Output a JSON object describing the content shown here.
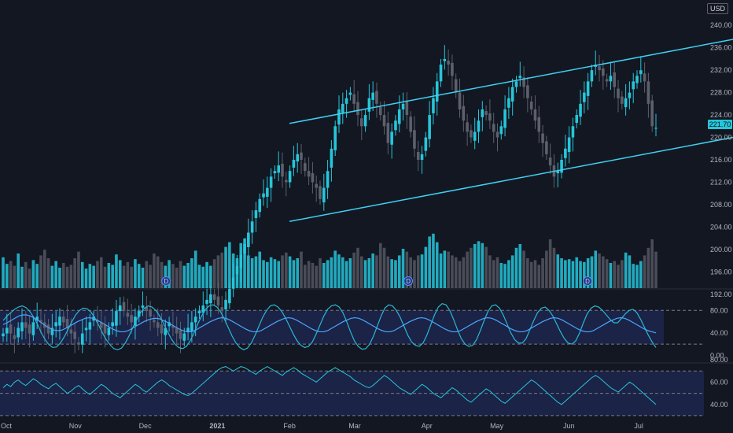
{
  "currency_button": "USD",
  "last_price_label": "221.70",
  "event_marker_label": "D",
  "colors": {
    "background": "#131722",
    "up": "#26c6da",
    "down": "#5d606b",
    "channel": "#3fd0f0",
    "stoch_k": "#2bb7d6",
    "stoch_d": "#4aa7ff",
    "rsi": "#26c6da",
    "band_fill": "#1f2a55"
  },
  "chart_data": [
    {
      "type": "candlestick",
      "title": "",
      "x_ticks": [
        "Oct",
        "Nov",
        "Dec",
        "2021",
        "Feb",
        "Mar",
        "Apr",
        "May",
        "Jun",
        "Jul"
      ],
      "y_ticks": [
        "192.00",
        "196.00",
        "200.00",
        "204.00",
        "208.00",
        "212.00",
        "216.00",
        "220.00",
        "224.00",
        "228.00",
        "232.00",
        "236.00",
        "240.00"
      ],
      "ylim": [
        190,
        242
      ],
      "last_price": 221.7,
      "close_series": {
        "start_date": "2020-10-01",
        "values": [
          185,
          186,
          185,
          184,
          186,
          187,
          186,
          185,
          187,
          188,
          187,
          186,
          185,
          186,
          187,
          188,
          187,
          186,
          185,
          184,
          183,
          185,
          186,
          187,
          188,
          187,
          186,
          185,
          186,
          187,
          189,
          190,
          189,
          188,
          187,
          188,
          189,
          190,
          189,
          188,
          187,
          186,
          185,
          186,
          187,
          186,
          185,
          184,
          185,
          186,
          187,
          188,
          189,
          190,
          191,
          192,
          191,
          190,
          189,
          191,
          193,
          195,
          197,
          199,
          201,
          203,
          205,
          207,
          209,
          210,
          211,
          213,
          214,
          215,
          213,
          212,
          214,
          216,
          217,
          216,
          214,
          213,
          212,
          211,
          209,
          211,
          214,
          218,
          222,
          225,
          226,
          227,
          228,
          226,
          224,
          222,
          224,
          227,
          228,
          226,
          224,
          222,
          219,
          221,
          223,
          225,
          226,
          224,
          221,
          218,
          216,
          217,
          220,
          224,
          227,
          230,
          233,
          234,
          233,
          231,
          228,
          225,
          223,
          221,
          220,
          221,
          223,
          225,
          224,
          223,
          221,
          220,
          222,
          225,
          227,
          229,
          230,
          231,
          229,
          227,
          225,
          223,
          221,
          219,
          217,
          215,
          213,
          214,
          216,
          218,
          220,
          222,
          224,
          226,
          228,
          230,
          232,
          233,
          232,
          231,
          230,
          231,
          229,
          227,
          226,
          227,
          228,
          230,
          231,
          232,
          230,
          226,
          222,
          221.7
        ]
      },
      "volume_series": [
        56,
        49,
        52,
        47,
        60,
        46,
        51,
        44,
        53,
        49,
        58,
        64,
        55,
        47,
        52,
        45,
        50,
        46,
        48,
        55,
        62,
        51,
        44,
        49,
        47,
        52,
        56,
        46,
        50,
        48,
        59,
        53,
        47,
        51,
        46,
        54,
        49,
        45,
        52,
        48,
        60,
        57,
        51,
        47,
        53,
        49,
        45,
        52,
        47,
        50,
        55,
        63,
        48,
        46,
        51,
        47,
        54,
        58,
        61,
        67,
        72,
        60,
        55,
        71,
        76,
        58,
        55,
        57,
        62,
        53,
        51,
        56,
        54,
        52,
        58,
        61,
        57,
        53,
        55,
        62,
        48,
        52,
        50,
        47,
        55,
        50,
        53,
        56,
        63,
        59,
        56,
        52,
        55,
        61,
        66,
        57,
        53,
        55,
        60,
        58,
        71,
        66,
        57,
        54,
        53,
        58,
        65,
        62,
        56,
        53,
        58,
        59,
        67,
        78,
        81,
        72,
        60,
        63,
        62,
        58,
        56,
        52,
        56,
        62,
        66,
        70,
        73,
        71,
        67,
        58,
        53,
        56,
        50,
        49,
        53,
        58,
        66,
        70,
        63,
        55,
        51,
        53,
        48,
        55,
        63,
        75,
        66,
        59,
        55,
        53,
        54,
        52,
        56,
        52,
        51,
        55,
        57,
        63,
        60,
        57,
        54,
        50,
        52,
        48,
        53,
        61,
        58,
        49,
        48,
        52,
        58,
        66,
        75,
        62
      ],
      "channel_upper": {
        "start": {
          "date": "2021-02-01",
          "value": 222.5
        },
        "end_value": 237.5
      },
      "channel_lower": {
        "start": {
          "date": "2021-02-01",
          "value": 205.0
        },
        "end_value": 220.0
      },
      "event_markers": [
        "2020-12-10",
        "2021-03-24",
        "2021-06-09"
      ]
    },
    {
      "type": "line",
      "title": "",
      "y_ticks": [
        "0.00",
        "40.00",
        "80.00"
      ],
      "ylim": [
        -5,
        100
      ],
      "levels": [
        20,
        80
      ],
      "series": [
        {
          "values": [
            62,
            70,
            76,
            82,
            86,
            88,
            85,
            78,
            68,
            55,
            40,
            28,
            19,
            14,
            15,
            22,
            33,
            46,
            60,
            72,
            80,
            84,
            83,
            77,
            67,
            54,
            40,
            28,
            19,
            12,
            10,
            13,
            22,
            35,
            50,
            64,
            76,
            84,
            88,
            86,
            80,
            70,
            57,
            43,
            30,
            20,
            14,
            12,
            16,
            26,
            40,
            56,
            70,
            82,
            88,
            90,
            86,
            77,
            64,
            49,
            34,
            22,
            14,
            10,
            13,
            22,
            36,
            52,
            68,
            80,
            88,
            90,
            86,
            78,
            66,
            52,
            38,
            26,
            18,
            14,
            16,
            24,
            38,
            54,
            70,
            82,
            88,
            90,
            86,
            76,
            60,
            42,
            26,
            16,
            11,
            12,
            20,
            34,
            52,
            70,
            84,
            90,
            88,
            80,
            68,
            52,
            36,
            24,
            18,
            16,
            22,
            36,
            54,
            72,
            86,
            92,
            90,
            80,
            64,
            46,
            30,
            20,
            16,
            18,
            28,
            44,
            62,
            78,
            88,
            90,
            84,
            72,
            56,
            40,
            28,
            22,
            22,
            30,
            46,
            62,
            76,
            84,
            86,
            80,
            70,
            56,
            42,
            30,
            22,
            20,
            26,
            40,
            58,
            74,
            84,
            88,
            86,
            80,
            72,
            64,
            58,
            58,
            66,
            74,
            80,
            82,
            76,
            64,
            50,
            36,
            24,
            14
          ]
        },
        {
          "values": [
            55,
            58,
            62,
            66,
            70,
            72,
            72,
            70,
            66,
            62,
            57,
            52,
            48,
            45,
            44,
            45,
            48,
            52,
            56,
            60,
            63,
            66,
            67,
            66,
            63,
            59,
            55,
            51,
            47,
            44,
            42,
            42,
            44,
            48,
            52,
            56,
            60,
            63,
            65,
            66,
            65,
            62,
            59,
            55,
            51,
            47,
            44,
            42,
            42,
            44,
            48,
            52,
            56,
            60,
            63,
            66,
            67,
            66,
            63,
            59,
            55,
            51,
            47,
            44,
            42,
            42,
            44,
            48,
            52,
            56,
            60,
            63,
            66,
            67,
            66,
            63,
            59,
            55,
            51,
            47,
            44,
            42,
            42,
            44,
            48,
            52,
            56,
            60,
            63,
            66,
            67,
            66,
            63,
            59,
            55,
            51,
            47,
            44,
            42,
            42,
            44,
            48,
            52,
            56,
            60,
            63,
            66,
            67,
            66,
            63,
            59,
            55,
            51,
            47,
            44,
            42,
            42,
            44,
            48,
            52,
            56,
            60,
            63,
            66,
            67,
            66,
            63,
            59,
            55,
            51,
            47,
            44,
            42,
            42,
            44,
            48,
            52,
            56,
            60,
            63,
            66,
            67,
            66,
            63,
            59,
            55,
            51,
            47,
            44,
            42,
            42,
            44,
            48,
            52,
            56,
            60,
            63,
            66,
            67,
            66,
            63,
            59,
            55,
            51,
            47,
            44,
            42,
            40
          ]
        }
      ]
    },
    {
      "type": "line",
      "title": "",
      "y_ticks": [
        "40.00",
        "60.00",
        "80.00"
      ],
      "ylim": [
        25,
        85
      ],
      "levels": [
        30,
        50,
        70
      ],
      "series": [
        {
          "values": [
            55,
            58,
            56,
            60,
            62,
            59,
            57,
            60,
            63,
            61,
            58,
            56,
            54,
            57,
            59,
            56,
            53,
            50,
            52,
            55,
            57,
            54,
            51,
            49,
            52,
            55,
            58,
            56,
            53,
            50,
            48,
            46,
            49,
            52,
            55,
            58,
            56,
            53,
            51,
            54,
            57,
            60,
            62,
            60,
            57,
            55,
            53,
            51,
            49,
            48,
            50,
            53,
            56,
            59,
            62,
            65,
            68,
            71,
            73,
            74,
            72,
            70,
            72,
            74,
            73,
            71,
            69,
            67,
            70,
            72,
            74,
            72,
            70,
            68,
            66,
            69,
            71,
            73,
            71,
            68,
            66,
            64,
            62,
            60,
            63,
            66,
            69,
            71,
            73,
            71,
            69,
            67,
            65,
            62,
            60,
            58,
            56,
            55,
            57,
            60,
            63,
            66,
            64,
            61,
            58,
            55,
            53,
            51,
            49,
            52,
            55,
            58,
            56,
            53,
            50,
            48,
            46,
            49,
            52,
            55,
            53,
            50,
            47,
            44,
            42,
            45,
            48,
            51,
            54,
            52,
            49,
            46,
            43,
            41,
            44,
            47,
            50,
            53,
            56,
            59,
            62,
            60,
            57,
            54,
            51,
            48,
            45,
            42,
            40,
            43,
            46,
            49,
            52,
            55,
            58,
            61,
            64,
            66,
            64,
            61,
            58,
            55,
            53,
            51,
            54,
            57,
            60,
            58,
            55,
            52,
            49,
            46,
            43,
            40
          ]
        }
      ]
    }
  ]
}
